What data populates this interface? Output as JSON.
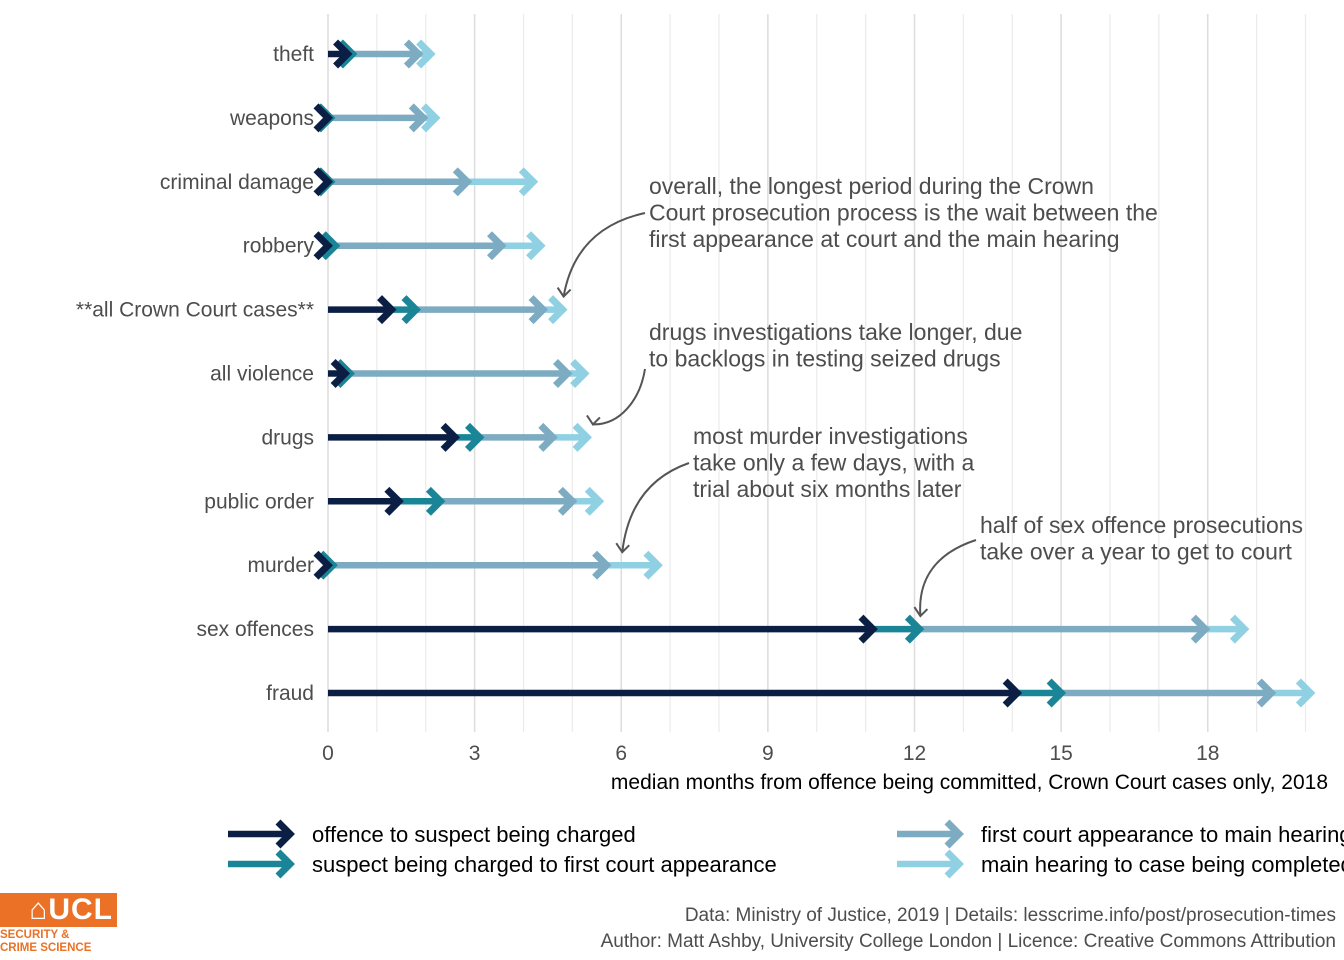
{
  "chart_data": {
    "type": "arrow-stage-bar",
    "xlabel": "median months from offence being committed, Crown Court cases only, 2018",
    "xlim": [
      0,
      20
    ],
    "x_ticks": [
      0,
      3,
      6,
      9,
      12,
      15,
      18
    ],
    "categories": [
      "theft",
      "weapons",
      "criminal damage",
      "robbery",
      "**all Crown Court cases**",
      "all violence",
      "drugs",
      "public order",
      "murder",
      "sex offences",
      "fraud"
    ],
    "stages": [
      {
        "name": "offence to suspect being charged",
        "color": "#0b1f44"
      },
      {
        "name": "suspect being charged to first court appearance",
        "color": "#1a8596"
      },
      {
        "name": "first court appearance to main hearing",
        "color": "#7dabc1"
      },
      {
        "name": "main hearing to case being completed",
        "color": "#8fd0e2"
      }
    ],
    "values": [
      [
        0.4,
        0.5,
        1.85,
        2.1
      ],
      [
        0.0,
        0.05,
        1.95,
        2.2
      ],
      [
        0.0,
        0.05,
        2.85,
        4.2
      ],
      [
        0.0,
        0.15,
        3.55,
        4.35
      ],
      [
        1.3,
        1.8,
        4.4,
        4.8
      ],
      [
        0.35,
        0.45,
        4.9,
        5.25
      ],
      [
        2.6,
        3.1,
        4.6,
        5.3
      ],
      [
        1.45,
        2.3,
        5.0,
        5.55
      ],
      [
        0.0,
        0.1,
        5.7,
        6.75
      ],
      [
        11.15,
        12.1,
        17.95,
        18.75
      ],
      [
        14.1,
        15.0,
        19.3,
        20.1
      ]
    ],
    "annotations": [
      {
        "lines": [
          "overall, the longest period during the Crown",
          "Court prosecution process is the wait between the",
          "first appearance at court and the main hearing"
        ],
        "target_category": "**all Crown Court cases**",
        "target_x": 4.8
      },
      {
        "lines": [
          "drugs investigations take longer, due",
          "to backlogs in testing seized drugs"
        ],
        "target_category": "drugs",
        "target_x": 5.4
      },
      {
        "lines": [
          "most murder investigations",
          "take only a few days, with a",
          "trial about six months later"
        ],
        "target_category": "murder",
        "target_x": 6.0
      },
      {
        "lines": [
          "half of sex offence prosecutions",
          "take over a year to get to court"
        ],
        "target_category": "sex offences",
        "target_x": 12.1
      }
    ]
  },
  "caption": {
    "line1": "Data: Ministry of Justice, 2019 |  Details: lesscrime.info/post/prosecution-times",
    "line2": "Author: Matt Ashby, University College London |  Licence: Creative Commons Attribution"
  },
  "logo": {
    "mark": "⌂UCL",
    "sub_line1": "SECURITY &",
    "sub_line2": "CRIME SCIENCE"
  }
}
